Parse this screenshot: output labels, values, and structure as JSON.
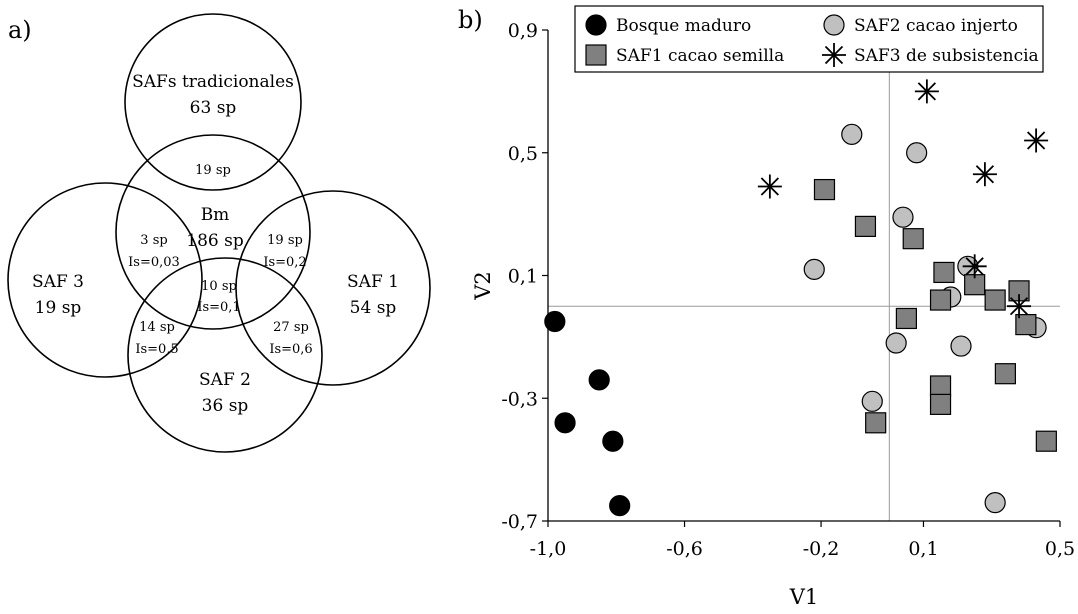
{
  "panel_a": {
    "label": "a)",
    "circles": [
      {
        "id": "saf_tradicionales",
        "name": "SAFs tradicionales",
        "count": "63 sp"
      },
      {
        "id": "bm",
        "name": "Bm",
        "count": "186 sp"
      },
      {
        "id": "saf3",
        "name": "SAF 3",
        "count": "19 sp"
      },
      {
        "id": "saf1",
        "name": "SAF 1",
        "count": "54 sp"
      },
      {
        "id": "saf2",
        "name": "SAF 2",
        "count": "36 sp"
      }
    ],
    "overlaps": [
      {
        "id": "trad_bm",
        "count": "19 sp",
        "is": ""
      },
      {
        "id": "bm_saf3",
        "count": "3 sp",
        "is": "Is=0,03"
      },
      {
        "id": "bm_saf1",
        "count": "19 sp",
        "is": "Is=0,2"
      },
      {
        "id": "center",
        "count": "10 sp",
        "is": "Is=0,1"
      },
      {
        "id": "saf3_saf2",
        "count": "14 sp",
        "is": "Is=0,5"
      },
      {
        "id": "saf1_saf2",
        "count": "27 sp",
        "is": "Is=0,6"
      }
    ]
  },
  "panel_b": {
    "label": "b)"
  },
  "chart_data": {
    "type": "scatter",
    "title": "",
    "xlabel": "V1",
    "ylabel": "V2",
    "xlim": [
      -1.0,
      0.5
    ],
    "ylim": [
      -0.7,
      0.9
    ],
    "x_ticks": [
      -1.0,
      -0.6,
      -0.2,
      0.1,
      0.5
    ],
    "x_tick_labels": [
      "-1,0",
      "-0,6",
      "-0,2",
      "0,1",
      "0,5"
    ],
    "y_ticks": [
      -0.7,
      -0.3,
      0.1,
      0.5,
      0.9
    ],
    "y_tick_labels": [
      "-0,7",
      "-0,3",
      "0,1",
      "0,5",
      "0,9"
    ],
    "reference_lines": {
      "x": 0.0,
      "y": 0.0
    },
    "grid": false,
    "legend_position": "top",
    "series": [
      {
        "name": "Bosque maduro",
        "marker": "circle",
        "fill": "#000000",
        "points": [
          [
            -0.98,
            -0.05
          ],
          [
            -0.85,
            -0.24
          ],
          [
            -0.95,
            -0.38
          ],
          [
            -0.81,
            -0.44
          ],
          [
            -0.79,
            -0.65
          ]
        ]
      },
      {
        "name": "SAF2 cacao injerto",
        "marker": "circle",
        "fill": "#c0c0c0",
        "points": [
          [
            -0.11,
            0.56
          ],
          [
            0.08,
            0.5
          ],
          [
            0.04,
            0.29
          ],
          [
            -0.22,
            0.12
          ],
          [
            0.23,
            0.13
          ],
          [
            0.18,
            0.03
          ],
          [
            0.43,
            -0.07
          ],
          [
            0.02,
            -0.12
          ],
          [
            0.21,
            -0.13
          ],
          [
            -0.05,
            -0.31
          ],
          [
            0.31,
            -0.64
          ]
        ]
      },
      {
        "name": "SAF1 cacao semilla",
        "marker": "square",
        "fill": "#808080",
        "points": [
          [
            -0.19,
            0.38
          ],
          [
            -0.07,
            0.26
          ],
          [
            0.07,
            0.22
          ],
          [
            0.16,
            0.11
          ],
          [
            0.25,
            0.07
          ],
          [
            0.38,
            0.05
          ],
          [
            0.31,
            0.02
          ],
          [
            0.15,
            0.02
          ],
          [
            0.05,
            -0.04
          ],
          [
            0.4,
            -0.06
          ],
          [
            0.34,
            -0.22
          ],
          [
            0.15,
            -0.26
          ],
          [
            0.15,
            -0.32
          ],
          [
            -0.04,
            -0.38
          ],
          [
            0.46,
            -0.44
          ]
        ]
      },
      {
        "name": "SAF3 de subsistencia",
        "marker": "star",
        "fill": "#000000",
        "points": [
          [
            0.11,
            0.7
          ],
          [
            0.43,
            0.54
          ],
          [
            0.28,
            0.43
          ],
          [
            -0.35,
            0.39
          ],
          [
            0.25,
            0.13
          ],
          [
            0.38,
            0.0
          ]
        ]
      }
    ]
  }
}
